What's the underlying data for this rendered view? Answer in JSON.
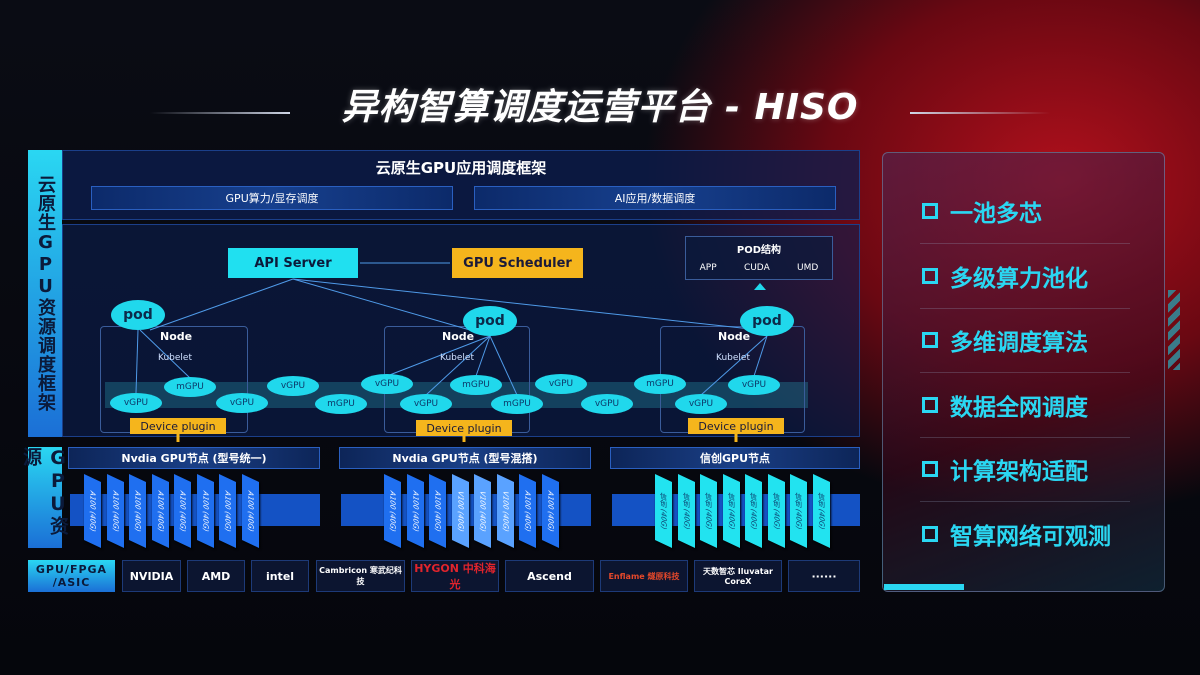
{
  "title": "异构智算调度运营平台 - HISO",
  "left_labels": {
    "framework": "云原生GPU资源调度框架",
    "resources": "GPU资源"
  },
  "framework": {
    "header": "云原生GPU应用调度框架",
    "sub": [
      "GPU算力/显存调度",
      "AI应用/数据调度"
    ],
    "api_server": "API Server",
    "gpu_scheduler": "GPU Scheduler",
    "pod_struct": {
      "title": "POD结构",
      "items": [
        "APP",
        "CUDA",
        "UMD"
      ]
    },
    "pod": "pod",
    "node": "Node",
    "kubelet": "Kubelet",
    "device_plugin": "Device plugin",
    "gpus": [
      "vGPU",
      "mGPU",
      "vGPU",
      "vGPU",
      "mGPU",
      "vGPU",
      "vGPU",
      "mGPU",
      "mGPU",
      "vGPU",
      "vGPU",
      "mGPU",
      "vGPU",
      "vGPU"
    ]
  },
  "resources": [
    {
      "title": "Nvdia GPU节点 (型号统一)",
      "cards": [
        "A100 (40G)",
        "A100 (40G)",
        "A100 (40G)",
        "A100 (40G)",
        "A100 (40G)",
        "A100 (40G)",
        "A100 (40G)",
        "A100 (40G)"
      ],
      "color": "#1f6ff0"
    },
    {
      "title": "Nvdia GPU节点 (型号混搭)",
      "cards": [
        "A100 (40G)",
        "A100 (40G)",
        "A100 (40G)",
        "V100 (40G)",
        "V100 (40G)",
        "V100 (40G)",
        "A100 (40G)",
        "A100 (40G)"
      ],
      "color": "#1f6ff0",
      "alt_color": "#5aa2ff"
    },
    {
      "title": "信创GPU节点",
      "cards": [
        "信创 (40G)",
        "信创 (40G)",
        "信创 (40G)",
        "信创 (40G)",
        "信创 (40G)",
        "信创 (40G)",
        "信创 (40G)",
        "信创 (40G)"
      ],
      "color": "#22e3f0"
    }
  ],
  "vendors": {
    "label": "GPU/FPGA /ASIC",
    "logos": [
      "NVIDIA",
      "AMD",
      "intel",
      "Cambricon 寒武纪科技",
      "HYGON 中科海光",
      "Ascend",
      "Enflame 燧原科技",
      "天数智芯 Iluvatar CoreX",
      "······"
    ]
  },
  "features": [
    "一池多芯",
    "多级算力池化",
    "多维调度算法",
    "数据全网调度",
    "计算架构适配",
    "智算网络可观测"
  ],
  "colors": {
    "accent": "#2ad7f2",
    "scheduler": "#f5b51c",
    "background_red": "#b0101c"
  }
}
